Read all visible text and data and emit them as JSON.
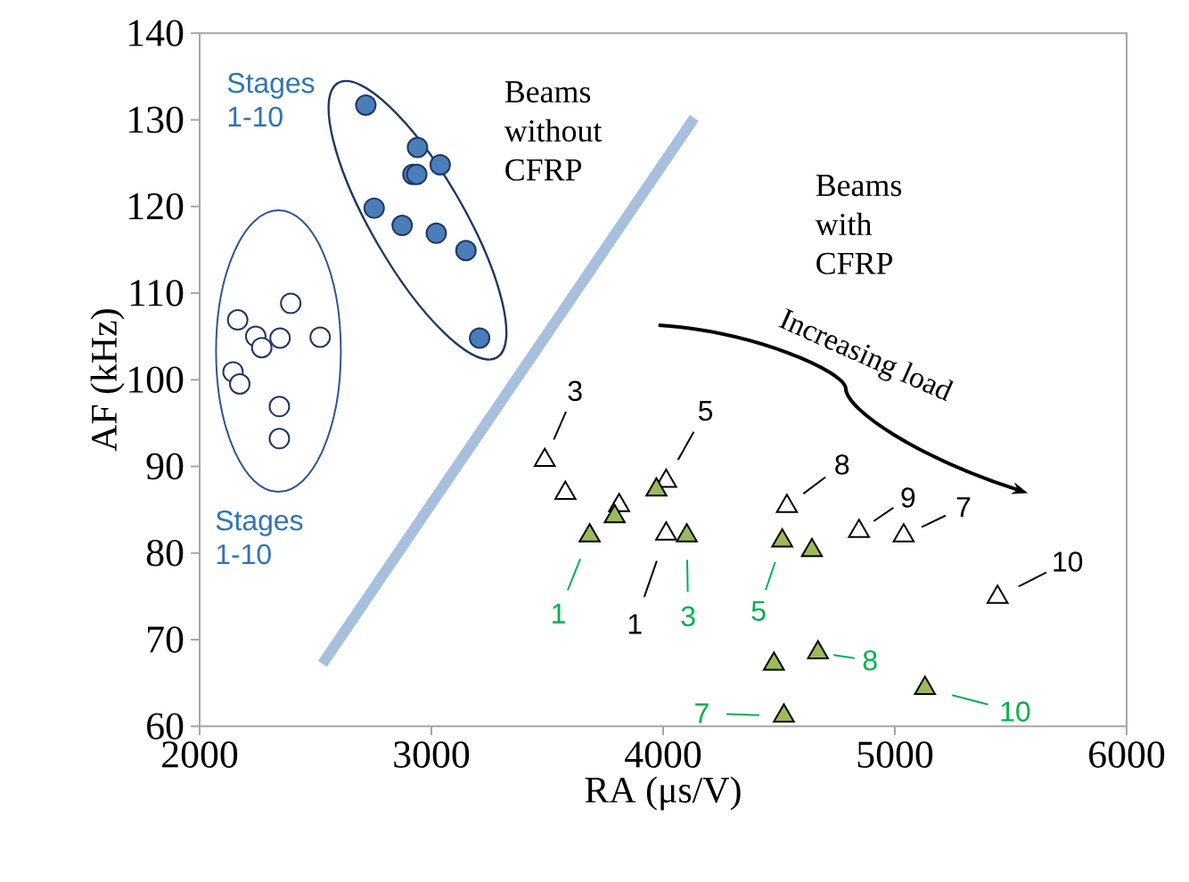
{
  "chart_data": {
    "type": "scatter",
    "xlabel": "RA (μs/V)",
    "ylabel": "AF (kHz)",
    "xlim": [
      2000,
      6000
    ],
    "xticks": [
      2000,
      3000,
      4000,
      5000,
      6000
    ],
    "ylim": [
      60,
      140
    ],
    "yticks": [
      60,
      70,
      80,
      90,
      100,
      110,
      120,
      130,
      140
    ],
    "grid": false,
    "series": [
      {
        "color": "#4a7ebb",
        "marker": "circle",
        "x": [
          2717,
          2940,
          2920,
          2937,
          3038,
          2753,
          2874,
          3021,
          3149,
          3208
        ],
        "values": [
          131.7,
          126.8,
          123.7,
          123.7,
          124.8,
          119.8,
          117.8,
          116.9,
          114.9,
          104.8
        ]
      },
      {
        "color": "#ffffff",
        "marker": "circle",
        "x": [
          2164,
          2393,
          2242,
          2268,
          2347,
          2520,
          2144,
          2173,
          2344,
          2344
        ],
        "values": [
          106.9,
          108.8,
          105.0,
          103.7,
          104.8,
          104.9,
          100.9,
          99.5,
          96.9,
          93.2
        ]
      },
      {
        "color": "#ffffff",
        "marker": "triangle",
        "x": [
          3489,
          3578,
          3810,
          4013,
          4013,
          4534,
          4845,
          5038,
          5443
        ],
        "values": [
          90.7,
          86.9,
          85.5,
          88.3,
          82.2,
          85.4,
          82.5,
          82.0,
          74.9
        ]
      },
      {
        "color": "#9bbb59",
        "marker": "triangle",
        "x": [
          3683,
          3791,
          3971,
          4102,
          4514,
          4642,
          4478,
          4668,
          4521,
          5130
        ],
        "values": [
          82.0,
          84.2,
          87.3,
          82.0,
          81.4,
          80.3,
          67.2,
          68.5,
          61.2,
          64.4
        ]
      },
      {
        "type": "line",
        "color": "#a6c0dd",
        "x": [
          2530,
          4134
        ],
        "values": [
          67.2,
          130.2
        ]
      }
    ],
    "annotations": [
      "Stages 1-10",
      "Stages 1-10",
      "Beams without CFRP",
      "Beams with CFRP",
      "Increasing load",
      {
        "text": "3",
        "x": 3489,
        "y": 90.7
      },
      {
        "text": "5",
        "x": 4013,
        "y": 88.3
      },
      {
        "text": "1",
        "x": 4013,
        "y": 82.2
      },
      {
        "text": "8",
        "x": 4534,
        "y": 85.4
      },
      {
        "text": "9",
        "x": 4845,
        "y": 82.5
      },
      {
        "text": "7",
        "x": 5038,
        "y": 82.0
      },
      {
        "text": "10",
        "x": 5443,
        "y": 74.9
      },
      {
        "text": "1",
        "x": 3683,
        "y": 82.0
      },
      {
        "text": "3",
        "x": 4102,
        "y": 82.0
      },
      {
        "text": "5",
        "x": 4514,
        "y": 81.4
      },
      {
        "text": "8",
        "x": 4668,
        "y": 68.5
      },
      {
        "text": "7",
        "x": 4521,
        "y": 61.2
      },
      {
        "text": "10",
        "x": 5130,
        "y": 64.4
      }
    ]
  }
}
